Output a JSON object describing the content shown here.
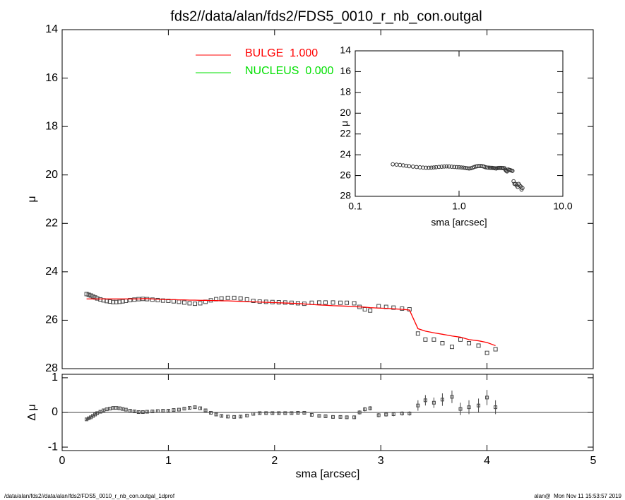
{
  "chart_data": [
    {
      "type": "profile",
      "title": "fds2//data/alan/fds2/FDS5_0010_r_nb_con.outgal",
      "ylabel": "μ",
      "xlim": [
        0,
        5
      ],
      "ylim": [
        14,
        28
      ],
      "y_reversed": true,
      "yticks": [
        14,
        16,
        18,
        20,
        22,
        24,
        26,
        28
      ],
      "point_color": "#444444",
      "x": [
        0.23,
        0.25,
        0.27,
        0.29,
        0.31,
        0.33,
        0.36,
        0.39,
        0.42,
        0.45,
        0.48,
        0.51,
        0.54,
        0.57,
        0.6,
        0.64,
        0.68,
        0.72,
        0.76,
        0.8,
        0.85,
        0.9,
        0.95,
        1.0,
        1.05,
        1.1,
        1.15,
        1.2,
        1.25,
        1.3,
        1.35,
        1.4,
        1.45,
        1.5,
        1.56,
        1.62,
        1.68,
        1.74,
        1.8,
        1.86,
        1.92,
        1.98,
        2.04,
        2.1,
        2.16,
        2.22,
        2.28,
        2.35,
        2.42,
        2.48,
        2.55,
        2.62,
        2.68,
        2.75,
        2.8,
        2.85,
        2.9,
        2.98,
        3.05,
        3.12,
        3.2,
        3.27,
        3.35,
        3.42,
        3.5,
        3.58,
        3.67,
        3.75,
        3.83,
        3.92,
        4.0,
        4.08
      ],
      "values": [
        24.92,
        24.95,
        24.98,
        25.02,
        25.06,
        25.1,
        25.14,
        25.18,
        25.21,
        25.23,
        25.25,
        25.25,
        25.24,
        25.22,
        25.2,
        25.17,
        25.15,
        25.13,
        25.12,
        25.13,
        25.15,
        25.17,
        25.19,
        25.2,
        25.22,
        25.24,
        25.27,
        25.3,
        25.32,
        25.3,
        25.24,
        25.18,
        25.13,
        25.1,
        25.08,
        25.08,
        25.1,
        25.14,
        25.2,
        25.23,
        25.24,
        25.25,
        25.26,
        25.27,
        25.28,
        25.3,
        25.32,
        25.28,
        25.27,
        25.27,
        25.27,
        25.28,
        25.28,
        25.3,
        25.45,
        25.55,
        25.6,
        25.42,
        25.45,
        25.48,
        25.52,
        25.55,
        26.55,
        26.8,
        26.8,
        26.95,
        27.1,
        26.8,
        26.95,
        27.05,
        27.35,
        27.2
      ],
      "model": [
        25.12,
        25.12,
        25.12,
        25.12,
        25.12,
        25.12,
        25.12,
        25.12,
        25.12,
        25.12,
        25.12,
        25.12,
        25.12,
        25.12,
        25.12,
        25.12,
        25.12,
        25.12,
        25.11,
        25.11,
        25.12,
        25.13,
        25.14,
        25.15,
        25.15,
        25.16,
        25.16,
        25.17,
        25.17,
        25.18,
        25.18,
        25.19,
        25.19,
        25.2,
        25.2,
        25.21,
        25.22,
        25.23,
        25.24,
        25.25,
        25.26,
        25.27,
        25.28,
        25.29,
        25.3,
        25.31,
        25.33,
        25.35,
        25.37,
        25.38,
        25.4,
        25.41,
        25.42,
        25.44,
        25.45,
        25.46,
        25.48,
        25.5,
        25.51,
        25.53,
        25.55,
        25.58,
        26.35,
        26.45,
        26.52,
        26.58,
        26.65,
        26.7,
        26.8,
        26.85,
        26.92,
        27.05
      ],
      "legend": [
        {
          "name": "BULGE  1.000",
          "color": "#ff0000"
        },
        {
          "name": "NUCLEUS  0.000",
          "color": "#00e000"
        }
      ]
    },
    {
      "type": "residual",
      "ylabel": "Δ μ",
      "xlabel": "sma [arcsec]",
      "xlim": [
        0,
        5
      ],
      "ylim": [
        -1.1,
        1.1
      ],
      "xticks": [
        0,
        1,
        2,
        3,
        4,
        5
      ],
      "yticks": [
        -1,
        0,
        1
      ],
      "values": [
        -0.2,
        -0.17,
        -0.14,
        -0.1,
        -0.06,
        -0.02,
        0.02,
        0.06,
        0.09,
        0.11,
        0.13,
        0.13,
        0.12,
        0.1,
        0.08,
        0.05,
        0.03,
        0.01,
        0.01,
        0.02,
        0.03,
        0.04,
        0.05,
        0.05,
        0.07,
        0.08,
        0.11,
        0.13,
        0.15,
        0.12,
        0.06,
        -0.01,
        -0.06,
        -0.1,
        -0.12,
        -0.13,
        -0.12,
        -0.09,
        -0.04,
        -0.02,
        -0.02,
        -0.02,
        -0.02,
        -0.02,
        -0.02,
        -0.01,
        -0.01,
        -0.07,
        -0.1,
        -0.11,
        -0.13,
        -0.13,
        -0.14,
        -0.14,
        0.0,
        0.09,
        0.12,
        -0.08,
        -0.06,
        -0.05,
        -0.03,
        -0.03,
        0.2,
        0.35,
        0.28,
        0.37,
        0.45,
        0.1,
        0.15,
        0.2,
        0.43,
        0.15
      ],
      "errors": [
        0.03,
        0.03,
        0.03,
        0.03,
        0.03,
        0.03,
        0.03,
        0.03,
        0.03,
        0.03,
        0.03,
        0.03,
        0.03,
        0.03,
        0.03,
        0.03,
        0.03,
        0.03,
        0.03,
        0.03,
        0.03,
        0.03,
        0.03,
        0.03,
        0.03,
        0.03,
        0.03,
        0.03,
        0.03,
        0.03,
        0.04,
        0.04,
        0.04,
        0.04,
        0.04,
        0.04,
        0.04,
        0.04,
        0.04,
        0.04,
        0.04,
        0.04,
        0.04,
        0.04,
        0.04,
        0.04,
        0.04,
        0.05,
        0.05,
        0.05,
        0.05,
        0.05,
        0.05,
        0.05,
        0.06,
        0.06,
        0.06,
        0.06,
        0.06,
        0.06,
        0.06,
        0.06,
        0.15,
        0.15,
        0.15,
        0.18,
        0.18,
        0.18,
        0.2,
        0.2,
        0.22,
        0.2
      ]
    },
    {
      "type": "inset",
      "ylabel": "μ",
      "xlabel": "sma [arcsec]",
      "log_x": true,
      "xlim": [
        0.1,
        10
      ],
      "ylim": [
        14,
        28
      ],
      "y_reversed": true,
      "xticks": [
        0.1,
        {
          "value": 1,
          "label": "1.0"
        },
        {
          "value": 10,
          "label": "10.0"
        }
      ],
      "yticks": [
        14,
        16,
        18,
        20,
        22,
        24,
        26,
        28
      ]
    }
  ],
  "footer": {
    "left": "/data/alan/fds2//data/alan/fds2/FDS5_0010_r_nb_con.outgal_1dprof",
    "right": "alan@  Mon Nov 11 15:53:57 2019"
  }
}
